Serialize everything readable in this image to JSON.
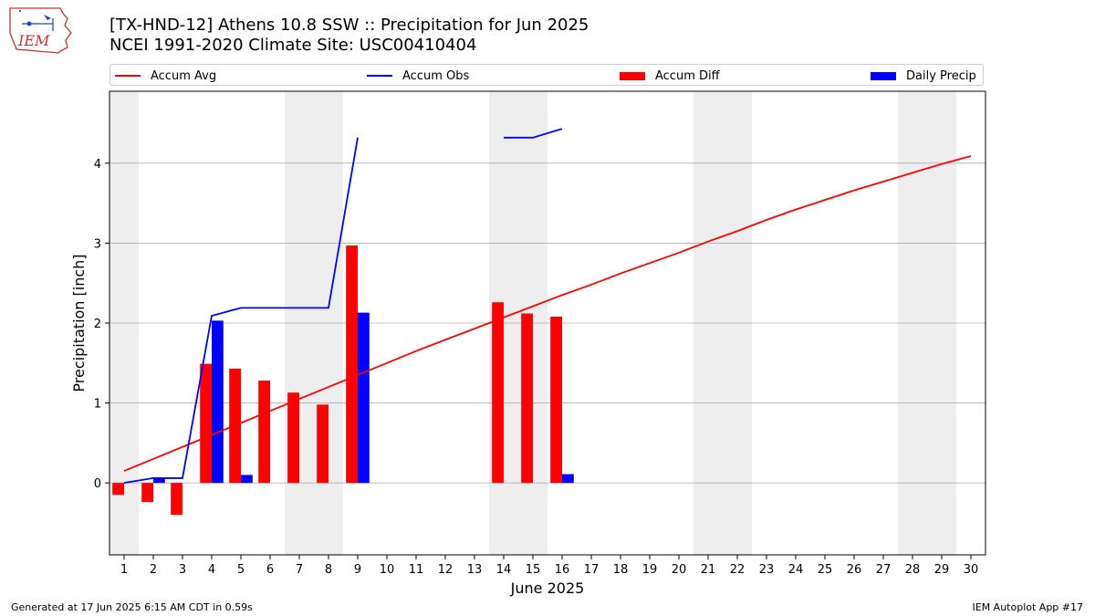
{
  "header": {
    "title_line1": "[TX-HND-12] Athens 10.8 SSW :: Precipitation for Jun 2025",
    "title_line2": "NCEI 1991-2020 Climate Site: USC00410404"
  },
  "footer": {
    "generated": "Generated at 17 Jun 2025 6:15 AM CDT in 0.59s",
    "app": "IEM Autoplot App #17"
  },
  "logo": {
    "text": "IEM"
  },
  "legend": {
    "accum_avg": "Accum Avg",
    "accum_obs": "Accum Obs",
    "accum_diff": "Accum Diff",
    "daily_precip": "Daily Precip"
  },
  "colors": {
    "accum_avg": "#ff0000",
    "accum_obs": "#0000ff",
    "accum_diff": "#ff0000",
    "daily_precip": "#0000ff",
    "weekend_shade": "#eeeeee",
    "grid": "#b0b0b0"
  },
  "chart_data": {
    "type": "bar",
    "xlabel": "June 2025",
    "ylabel": "Precipitation [inch]",
    "xlim": [
      0.5,
      30.5
    ],
    "ylim": [
      -0.9,
      4.9
    ],
    "x_ticks": [
      1,
      2,
      3,
      4,
      5,
      6,
      7,
      8,
      9,
      10,
      11,
      12,
      13,
      14,
      15,
      16,
      17,
      18,
      19,
      20,
      21,
      22,
      23,
      24,
      25,
      26,
      27,
      28,
      29,
      30
    ],
    "y_ticks": [
      0,
      1,
      2,
      3,
      4
    ],
    "grid": "horizontal",
    "legend_position": "top",
    "weekends": [
      1,
      7,
      8,
      14,
      15,
      21,
      22,
      28,
      29
    ],
    "series": [
      {
        "name": "Accum Avg",
        "kind": "line",
        "x": [
          1,
          2,
          3,
          4,
          5,
          6,
          7,
          8,
          9,
          10,
          11,
          12,
          13,
          14,
          15,
          16,
          17,
          18,
          19,
          20,
          21,
          22,
          23,
          24,
          25,
          26,
          27,
          28,
          29,
          30
        ],
        "values": [
          0.15,
          0.3,
          0.45,
          0.6,
          0.75,
          0.9,
          1.05,
          1.2,
          1.35,
          1.5,
          1.65,
          1.79,
          1.93,
          2.07,
          2.21,
          2.35,
          2.48,
          2.62,
          2.75,
          2.88,
          3.02,
          3.15,
          3.29,
          3.42,
          3.54,
          3.66,
          3.77,
          3.88,
          3.99,
          4.09
        ]
      },
      {
        "name": "Accum Obs",
        "kind": "line",
        "x": [
          1,
          2,
          3,
          4,
          5,
          6,
          7,
          8,
          9,
          10,
          11,
          12,
          13,
          14,
          15,
          16
        ],
        "values": [
          0.0,
          0.06,
          0.06,
          2.09,
          2.19,
          2.19,
          2.19,
          2.19,
          4.32,
          null,
          null,
          null,
          null,
          4.32,
          4.32,
          4.43
        ]
      },
      {
        "name": "Accum Diff",
        "kind": "bar",
        "x": [
          1,
          2,
          3,
          4,
          5,
          6,
          7,
          8,
          9,
          14,
          15,
          16
        ],
        "values": [
          -0.15,
          -0.24,
          -0.4,
          1.49,
          1.43,
          1.28,
          1.13,
          0.98,
          2.97,
          2.26,
          2.12,
          2.08
        ]
      },
      {
        "name": "Daily Precip",
        "kind": "bar",
        "x": [
          1,
          2,
          3,
          4,
          5,
          6,
          7,
          8,
          9,
          14,
          15,
          16
        ],
        "values": [
          0.0,
          0.06,
          0.0,
          2.03,
          0.1,
          0.0,
          0.0,
          0.0,
          2.13,
          0.0,
          0.0,
          0.11
        ]
      }
    ]
  }
}
